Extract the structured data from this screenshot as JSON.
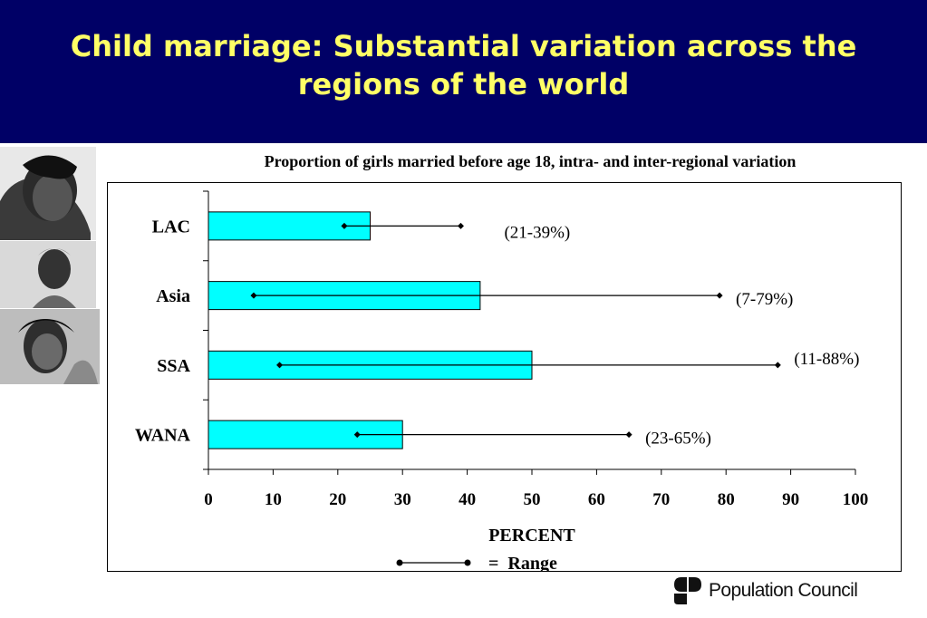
{
  "title": "Child marriage: Substantial variation across the regions of the world",
  "logo": {
    "name": "Population Council",
    "icon": "population-council-logo-icon"
  },
  "colors": {
    "title_band": "#000066",
    "title_text": "#ffff66",
    "bar": "#00ffff"
  },
  "chart_data": {
    "type": "bar",
    "orientation": "horizontal",
    "title": "Proportion of girls married before age 18, intra- and inter-regional variation",
    "xlabel": "PERCENT",
    "ylabel": "",
    "xlim": [
      0,
      100
    ],
    "xticks": [
      0,
      10,
      20,
      30,
      40,
      50,
      60,
      70,
      80,
      90,
      100
    ],
    "categories": [
      "LAC",
      "Asia",
      "SSA",
      "WANA"
    ],
    "values": [
      25,
      42,
      50,
      30
    ],
    "range_low": [
      21,
      7,
      11,
      23
    ],
    "range_high": [
      39,
      79,
      88,
      65
    ],
    "range_labels": [
      "(21-39%)",
      "(7-79%)",
      "(11-88%)",
      "(23-65%)"
    ],
    "legend": {
      "label": "=  Range",
      "placement": "bottom-center"
    },
    "grid": false
  }
}
